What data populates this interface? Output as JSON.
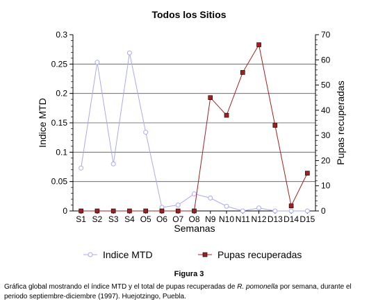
{
  "chart_data": {
    "type": "line",
    "title": "Todos los Sitios",
    "xlabel": "Semanas",
    "ylabel": "Indice MTD",
    "y2label": "Pupas recuperadas",
    "categories": [
      "S1",
      "S2",
      "S3",
      "S4",
      "O5",
      "O6",
      "O7",
      "O8",
      "N9",
      "N10",
      "N11",
      "N12",
      "D13",
      "D14",
      "D15"
    ],
    "ylim": [
      0,
      0.3
    ],
    "y2lim": [
      0,
      70
    ],
    "yticks": [
      "0",
      "0.05",
      "0.1",
      "0.15",
      "0.2",
      "0.25",
      "0.3"
    ],
    "y2ticks": [
      "0",
      "10",
      "20",
      "30",
      "40",
      "50",
      "60",
      "70"
    ],
    "grid": true,
    "legend_position": "bottom",
    "series": [
      {
        "name": "Indice MTD",
        "axis": "left",
        "color": "#aaaaee",
        "marker": "circle",
        "values": [
          0.073,
          0.253,
          0.08,
          0.269,
          0.134,
          0.006,
          0.01,
          0.029,
          0.022,
          0.008,
          0.0,
          0.005,
          0.0,
          0.0,
          0.0
        ]
      },
      {
        "name": "Pupas recuperadas",
        "axis": "right",
        "color": "#a02020",
        "marker": "square",
        "values": [
          0,
          0,
          0,
          0,
          0,
          0,
          0,
          0,
          45,
          38,
          55,
          66,
          34,
          2,
          15
        ]
      }
    ]
  },
  "caption": {
    "figure_label": "Figura 3",
    "text_before": "Gráfica global mostrando el índice MTD y el total de pupas recuperadas de ",
    "species": "R. pomonella",
    "text_after": " por semana, durante el periodo septiembre-diciembre (1997). Huejotzingo, Puebla."
  }
}
